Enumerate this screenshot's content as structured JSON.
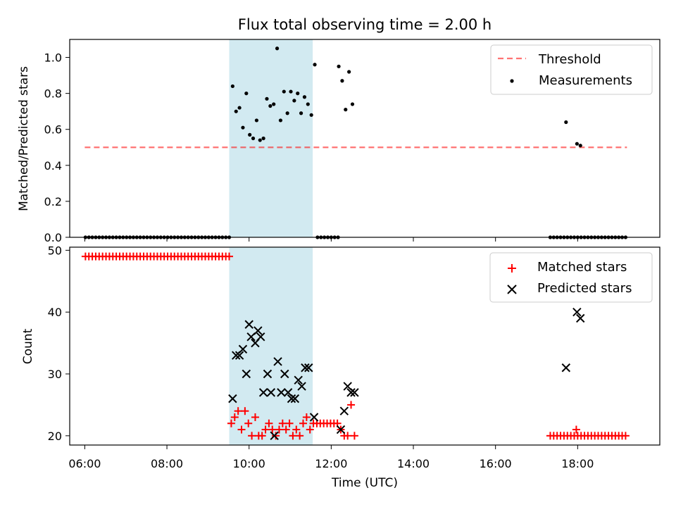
{
  "chart_data": [
    {
      "type": "scatter",
      "title": "Flux total observing time = 2.00 h",
      "xlabel": "",
      "ylabel": "Matched/Predicted stars",
      "xlim": [
        "05:38",
        "20:00"
      ],
      "ylim": [
        0,
        1.1
      ],
      "yticks": [
        "0.0",
        "0.2",
        "0.4",
        "0.6",
        "0.8",
        "1.0"
      ],
      "grid": false,
      "legend_position": "top-right",
      "highlight_band": {
        "start": "09:31",
        "end": "11:33",
        "color": "#add8e6"
      },
      "threshold": {
        "name": "Threshold",
        "value": 0.5,
        "x_start": "06:00",
        "x_end": "19:12",
        "color": "#ff0000",
        "style": "dashed"
      },
      "series": [
        {
          "name": "Measurements",
          "color": "#000000",
          "marker": "dot",
          "points": [
            [
              "06:01",
              0
            ],
            [
              "06:06",
              0
            ],
            [
              "06:11",
              0
            ],
            [
              "06:16",
              0
            ],
            [
              "06:21",
              0
            ],
            [
              "06:26",
              0
            ],
            [
              "06:31",
              0
            ],
            [
              "06:36",
              0
            ],
            [
              "06:41",
              0
            ],
            [
              "06:46",
              0
            ],
            [
              "06:51",
              0
            ],
            [
              "06:56",
              0
            ],
            [
              "07:01",
              0
            ],
            [
              "07:06",
              0
            ],
            [
              "07:11",
              0
            ],
            [
              "07:16",
              0
            ],
            [
              "07:21",
              0
            ],
            [
              "07:26",
              0
            ],
            [
              "07:31",
              0
            ],
            [
              "07:36",
              0
            ],
            [
              "07:41",
              0
            ],
            [
              "07:46",
              0
            ],
            [
              "07:51",
              0
            ],
            [
              "07:56",
              0
            ],
            [
              "08:01",
              0
            ],
            [
              "08:06",
              0
            ],
            [
              "08:11",
              0
            ],
            [
              "08:16",
              0
            ],
            [
              "08:21",
              0
            ],
            [
              "08:26",
              0
            ],
            [
              "08:31",
              0
            ],
            [
              "08:36",
              0
            ],
            [
              "08:41",
              0
            ],
            [
              "08:46",
              0
            ],
            [
              "08:51",
              0
            ],
            [
              "08:56",
              0
            ],
            [
              "09:01",
              0
            ],
            [
              "09:06",
              0
            ],
            [
              "09:11",
              0
            ],
            [
              "09:16",
              0
            ],
            [
              "09:21",
              0
            ],
            [
              "09:26",
              0
            ],
            [
              "09:31",
              0
            ],
            [
              "09:36",
              0.84
            ],
            [
              "09:41",
              0.7
            ],
            [
              "09:46",
              0.72
            ],
            [
              "09:51",
              0.61
            ],
            [
              "09:56",
              0.8
            ],
            [
              "10:01",
              0.57
            ],
            [
              "10:06",
              0.55
            ],
            [
              "10:11",
              0.65
            ],
            [
              "10:16",
              0.54
            ],
            [
              "10:21",
              0.55
            ],
            [
              "10:26",
              0.77
            ],
            [
              "10:31",
              0.73
            ],
            [
              "10:36",
              0.74
            ],
            [
              "10:41",
              1.05
            ],
            [
              "10:46",
              0.65
            ],
            [
              "10:51",
              0.81
            ],
            [
              "10:56",
              0.69
            ],
            [
              "11:01",
              0.81
            ],
            [
              "11:06",
              0.76
            ],
            [
              "11:11",
              0.8
            ],
            [
              "11:16",
              0.69
            ],
            [
              "11:21",
              0.78
            ],
            [
              "11:26",
              0.74
            ],
            [
              "11:31",
              0.68
            ],
            [
              "11:36",
              0.96
            ],
            [
              "11:40",
              0
            ],
            [
              "11:45",
              0
            ],
            [
              "11:50",
              0
            ],
            [
              "11:55",
              0
            ],
            [
              "12:00",
              0
            ],
            [
              "12:05",
              0
            ],
            [
              "12:10",
              0
            ],
            [
              "12:11",
              0.95
            ],
            [
              "12:16",
              0.87
            ],
            [
              "12:21",
              0.71
            ],
            [
              "12:26",
              0.92
            ],
            [
              "12:31",
              0.74
            ],
            [
              "17:20",
              0
            ],
            [
              "17:25",
              0
            ],
            [
              "17:30",
              0
            ],
            [
              "17:35",
              0
            ],
            [
              "17:40",
              0
            ],
            [
              "17:45",
              0
            ],
            [
              "17:50",
              0
            ],
            [
              "17:55",
              0
            ],
            [
              "18:00",
              0
            ],
            [
              "18:05",
              0
            ],
            [
              "18:10",
              0
            ],
            [
              "18:15",
              0
            ],
            [
              "18:20",
              0
            ],
            [
              "18:25",
              0
            ],
            [
              "18:30",
              0
            ],
            [
              "18:35",
              0
            ],
            [
              "18:40",
              0
            ],
            [
              "18:45",
              0
            ],
            [
              "18:50",
              0
            ],
            [
              "18:55",
              0
            ],
            [
              "19:00",
              0
            ],
            [
              "19:05",
              0
            ],
            [
              "19:10",
              0
            ],
            [
              "17:43",
              0.64
            ],
            [
              "17:59",
              0.52
            ],
            [
              "18:04",
              0.51
            ]
          ]
        }
      ]
    },
    {
      "type": "scatter",
      "title": "",
      "xlabel": "Time (UTC)",
      "ylabel": "Count",
      "xlim": [
        "05:38",
        "20:00"
      ],
      "ylim": [
        18.5,
        50.5
      ],
      "yticks": [
        "20",
        "30",
        "40",
        "50"
      ],
      "xticks": [
        "06:00",
        "08:00",
        "10:00",
        "12:00",
        "14:00",
        "16:00",
        "18:00"
      ],
      "grid": false,
      "legend_position": "top-right",
      "highlight_band": {
        "start": "09:31",
        "end": "11:33",
        "color": "#add8e6"
      },
      "series": [
        {
          "name": "Matched stars",
          "color": "#ff0000",
          "marker": "plus",
          "points": [
            [
              "06:01",
              49
            ],
            [
              "06:06",
              49
            ],
            [
              "06:11",
              49
            ],
            [
              "06:16",
              49
            ],
            [
              "06:21",
              49
            ],
            [
              "06:26",
              49
            ],
            [
              "06:31",
              49
            ],
            [
              "06:36",
              49
            ],
            [
              "06:41",
              49
            ],
            [
              "06:46",
              49
            ],
            [
              "06:51",
              49
            ],
            [
              "06:56",
              49
            ],
            [
              "07:01",
              49
            ],
            [
              "07:06",
              49
            ],
            [
              "07:11",
              49
            ],
            [
              "07:16",
              49
            ],
            [
              "07:21",
              49
            ],
            [
              "07:26",
              49
            ],
            [
              "07:31",
              49
            ],
            [
              "07:36",
              49
            ],
            [
              "07:41",
              49
            ],
            [
              "07:46",
              49
            ],
            [
              "07:51",
              49
            ],
            [
              "07:56",
              49
            ],
            [
              "08:01",
              49
            ],
            [
              "08:06",
              49
            ],
            [
              "08:11",
              49
            ],
            [
              "08:16",
              49
            ],
            [
              "08:21",
              49
            ],
            [
              "08:26",
              49
            ],
            [
              "08:31",
              49
            ],
            [
              "08:36",
              49
            ],
            [
              "08:41",
              49
            ],
            [
              "08:46",
              49
            ],
            [
              "08:51",
              49
            ],
            [
              "08:56",
              49
            ],
            [
              "09:01",
              49
            ],
            [
              "09:06",
              49
            ],
            [
              "09:11",
              49
            ],
            [
              "09:16",
              49
            ],
            [
              "09:21",
              49
            ],
            [
              "09:26",
              49
            ],
            [
              "09:31",
              49
            ],
            [
              "09:34",
              22
            ],
            [
              "09:39",
              23
            ],
            [
              "09:44",
              24
            ],
            [
              "09:49",
              21
            ],
            [
              "09:54",
              24
            ],
            [
              "09:59",
              22
            ],
            [
              "10:04",
              20
            ],
            [
              "10:09",
              23
            ],
            [
              "10:14",
              20
            ],
            [
              "10:19",
              20
            ],
            [
              "10:24",
              21
            ],
            [
              "10:29",
              22
            ],
            [
              "10:34",
              21
            ],
            [
              "10:39",
              20
            ],
            [
              "10:44",
              21
            ],
            [
              "10:49",
              22
            ],
            [
              "10:54",
              21
            ],
            [
              "10:59",
              22
            ],
            [
              "11:04",
              20
            ],
            [
              "11:09",
              21
            ],
            [
              "11:14",
              20
            ],
            [
              "11:19",
              22
            ],
            [
              "11:24",
              23
            ],
            [
              "11:29",
              21
            ],
            [
              "11:34",
              22
            ],
            [
              "11:39",
              22
            ],
            [
              "11:44",
              22
            ],
            [
              "11:49",
              22
            ],
            [
              "11:54",
              22
            ],
            [
              "11:59",
              22
            ],
            [
              "12:04",
              22
            ],
            [
              "12:09",
              22
            ],
            [
              "12:14",
              21
            ],
            [
              "12:19",
              20
            ],
            [
              "12:24",
              20
            ],
            [
              "12:29",
              25
            ],
            [
              "12:34",
              20
            ],
            [
              "17:20",
              20
            ],
            [
              "17:25",
              20
            ],
            [
              "17:30",
              20
            ],
            [
              "17:35",
              20
            ],
            [
              "17:40",
              20
            ],
            [
              "17:45",
              20
            ],
            [
              "17:50",
              20
            ],
            [
              "17:55",
              20
            ],
            [
              "17:58",
              21
            ],
            [
              "18:00",
              20
            ],
            [
              "18:05",
              20
            ],
            [
              "18:10",
              20
            ],
            [
              "18:15",
              20
            ],
            [
              "18:20",
              20
            ],
            [
              "18:25",
              20
            ],
            [
              "18:30",
              20
            ],
            [
              "18:35",
              20
            ],
            [
              "18:40",
              20
            ],
            [
              "18:45",
              20
            ],
            [
              "18:50",
              20
            ],
            [
              "18:55",
              20
            ],
            [
              "19:00",
              20
            ],
            [
              "19:05",
              20
            ],
            [
              "19:10",
              20
            ]
          ]
        },
        {
          "name": "Predicted stars",
          "color": "#000000",
          "marker": "x",
          "points": [
            [
              "09:36",
              26
            ],
            [
              "09:41",
              33
            ],
            [
              "09:46",
              33
            ],
            [
              "09:51",
              34
            ],
            [
              "09:56",
              30
            ],
            [
              "10:00",
              38
            ],
            [
              "10:03",
              36
            ],
            [
              "10:09",
              35
            ],
            [
              "10:13",
              37
            ],
            [
              "10:17",
              36
            ],
            [
              "10:21",
              27
            ],
            [
              "10:27",
              30
            ],
            [
              "10:32",
              27
            ],
            [
              "10:37",
              20
            ],
            [
              "10:42",
              32
            ],
            [
              "10:47",
              27
            ],
            [
              "10:52",
              30
            ],
            [
              "10:57",
              27
            ],
            [
              "11:02",
              26
            ],
            [
              "11:07",
              26
            ],
            [
              "11:12",
              29
            ],
            [
              "11:17",
              28
            ],
            [
              "11:22",
              31
            ],
            [
              "11:27",
              31
            ],
            [
              "11:35",
              23
            ],
            [
              "12:14",
              21
            ],
            [
              "12:19",
              24
            ],
            [
              "12:24",
              28
            ],
            [
              "12:29",
              27
            ],
            [
              "12:34",
              27
            ],
            [
              "17:43",
              31
            ],
            [
              "17:59",
              40
            ],
            [
              "18:04",
              39
            ]
          ]
        }
      ]
    }
  ]
}
